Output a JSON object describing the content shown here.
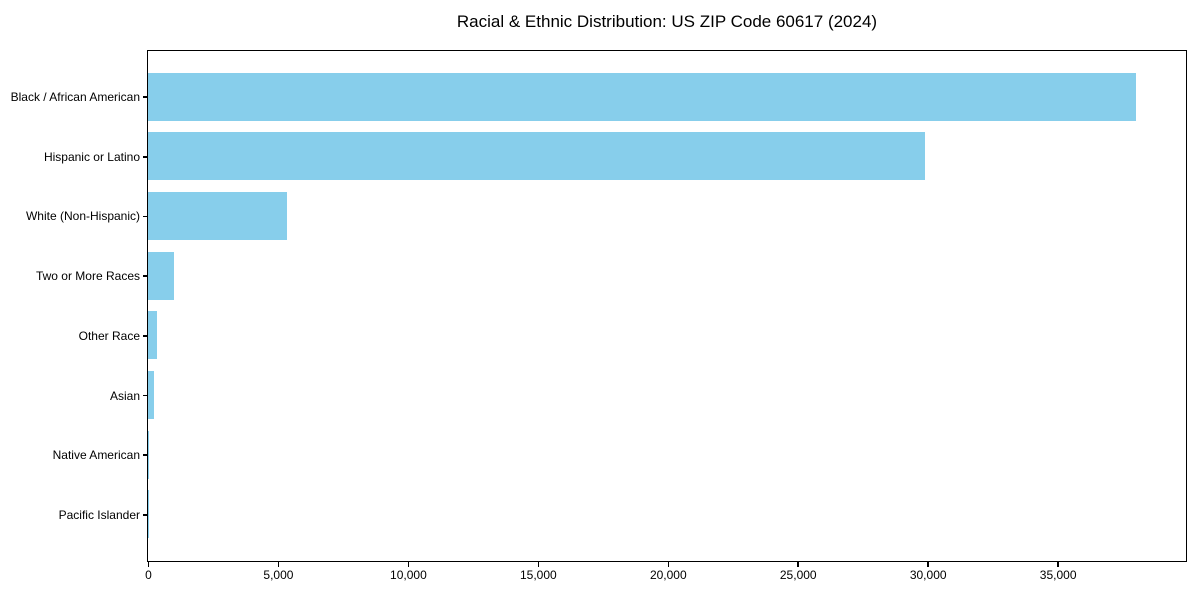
{
  "chart_data": {
    "type": "bar",
    "orientation": "horizontal",
    "title": "Racial & Ethnic Distribution: US ZIP Code 60617 (2024)",
    "categories": [
      "Black / African American",
      "Hispanic or Latino",
      "White (Non-Hispanic)",
      "Two or More Races",
      "Other Race",
      "Asian",
      "Native American",
      "Pacific Islander"
    ],
    "values": [
      38000,
      29900,
      5350,
      1000,
      350,
      220,
      30,
      10
    ],
    "xlabel": "",
    "ylabel": "",
    "xlim": [
      0,
      39900
    ],
    "xticks": [
      0,
      5000,
      10000,
      15000,
      20000,
      25000,
      30000,
      35000
    ],
    "xtick_labels": [
      "0",
      "5,000",
      "10,000",
      "15,000",
      "20,000",
      "25,000",
      "30,000",
      "35,000"
    ],
    "bar_color": "#87CEEB",
    "spine_color": "#000000",
    "grid": false,
    "legend": null,
    "bar_height_frac": 0.8
  }
}
